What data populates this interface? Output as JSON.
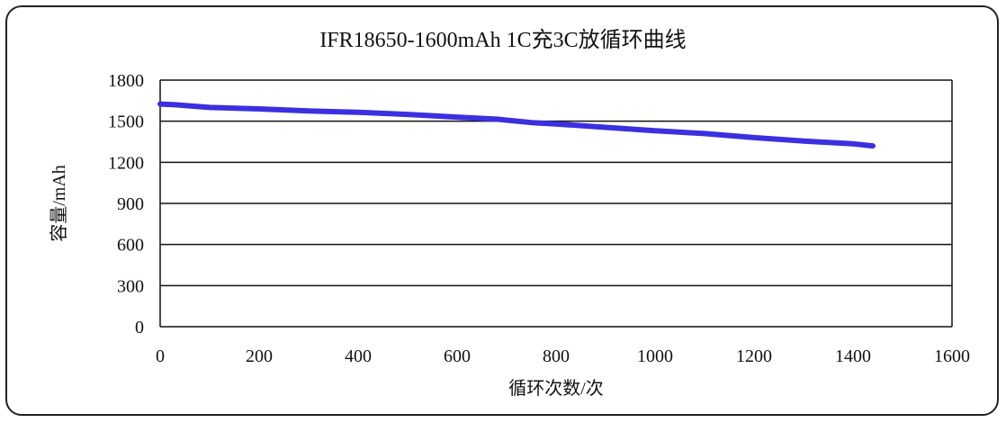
{
  "chart_data": {
    "type": "line",
    "title": "IFR18650-1600mAh  1C充3C放循环曲线",
    "xlabel": "循环次数/次",
    "ylabel": "容量/mAh",
    "xlim": [
      0,
      1600
    ],
    "ylim": [
      0,
      1800
    ],
    "xticks": [
      "0",
      "200",
      "400",
      "600",
      "800",
      "1000",
      "1200",
      "1400",
      "1600"
    ],
    "yticks": [
      "0",
      "300",
      "600",
      "900",
      "1200",
      "1500",
      "1800"
    ],
    "grid": "horizontal",
    "series": [
      {
        "name": "capacity",
        "color": "#3b30e0",
        "x": [
          0,
          30,
          100,
          200,
          300,
          400,
          500,
          600,
          680,
          750,
          800,
          900,
          1000,
          1100,
          1200,
          1300,
          1400,
          1440
        ],
        "y": [
          1625,
          1620,
          1600,
          1590,
          1575,
          1565,
          1550,
          1530,
          1515,
          1490,
          1480,
          1455,
          1430,
          1410,
          1380,
          1355,
          1335,
          1320
        ]
      }
    ]
  }
}
